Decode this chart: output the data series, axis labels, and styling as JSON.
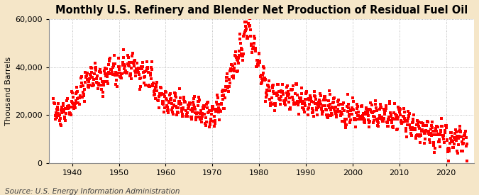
{
  "title": "Monthly U.S. Refinery and Blender Net Production of Residual Fuel Oil",
  "ylabel": "Thousand Barrels",
  "source": "Source: U.S. Energy Information Administration",
  "outer_bg": "#f5e6c8",
  "plot_bg": "#ffffff",
  "line_color": "#ff0000",
  "marker": "s",
  "marker_size": 2.2,
  "ylim": [
    0,
    60000
  ],
  "yticks": [
    0,
    20000,
    40000,
    60000
  ],
  "ytick_labels": [
    "0",
    "20,000",
    "40,000",
    "60,000"
  ],
  "xticks": [
    1940,
    1950,
    1960,
    1970,
    1980,
    1990,
    2000,
    2010,
    2020
  ],
  "title_fontsize": 10.5,
  "axis_fontsize": 8,
  "source_fontsize": 7.5,
  "grid_color": "#aaaaaa",
  "xlim_left": 1935,
  "xlim_right": 2026,
  "control_points": [
    [
      1936.0,
      22500
    ],
    [
      1937.0,
      21000
    ],
    [
      1938.0,
      21500
    ],
    [
      1939.0,
      23000
    ],
    [
      1940.0,
      25000
    ],
    [
      1941.5,
      28000
    ],
    [
      1943.0,
      34000
    ],
    [
      1944.5,
      37000
    ],
    [
      1945.5,
      35000
    ],
    [
      1946.5,
      33000
    ],
    [
      1947.5,
      38000
    ],
    [
      1948.5,
      40500
    ],
    [
      1949.5,
      36000
    ],
    [
      1950.5,
      38500
    ],
    [
      1951.5,
      40500
    ],
    [
      1952.5,
      40000
    ],
    [
      1953.0,
      41000
    ],
    [
      1954.0,
      37000
    ],
    [
      1955.0,
      38000
    ],
    [
      1956.0,
      37500
    ],
    [
      1957.0,
      35000
    ],
    [
      1958.0,
      30000
    ],
    [
      1959.0,
      27500
    ],
    [
      1960.0,
      25500
    ],
    [
      1961.0,
      24500
    ],
    [
      1962.0,
      24000
    ],
    [
      1963.0,
      24000
    ],
    [
      1964.0,
      23500
    ],
    [
      1965.0,
      23000
    ],
    [
      1966.0,
      22500
    ],
    [
      1967.0,
      21500
    ],
    [
      1968.0,
      21000
    ],
    [
      1969.0,
      20500
    ],
    [
      1970.0,
      20000
    ],
    [
      1971.0,
      21000
    ],
    [
      1972.0,
      25000
    ],
    [
      1973.0,
      33000
    ],
    [
      1974.5,
      40000
    ],
    [
      1975.5,
      44000
    ],
    [
      1976.5,
      49000
    ],
    [
      1977.3,
      56000
    ],
    [
      1977.8,
      58000
    ],
    [
      1978.3,
      52000
    ],
    [
      1979.0,
      48000
    ],
    [
      1980.0,
      42000
    ],
    [
      1981.0,
      35000
    ],
    [
      1982.0,
      29000
    ],
    [
      1983.0,
      27000
    ],
    [
      1984.0,
      29000
    ],
    [
      1985.0,
      28000
    ],
    [
      1986.0,
      27500
    ],
    [
      1987.0,
      27000
    ],
    [
      1988.0,
      27000
    ],
    [
      1989.0,
      26500
    ],
    [
      1990.0,
      26000
    ],
    [
      1991.0,
      25000
    ],
    [
      1992.0,
      25000
    ],
    [
      1993.0,
      24500
    ],
    [
      1994.0,
      24000
    ],
    [
      1995.0,
      23500
    ],
    [
      1996.0,
      23500
    ],
    [
      1997.0,
      22500
    ],
    [
      1998.0,
      21000
    ],
    [
      1999.0,
      20500
    ],
    [
      2000.0,
      20500
    ],
    [
      2001.0,
      20000
    ],
    [
      2002.0,
      20000
    ],
    [
      2003.0,
      20000
    ],
    [
      2004.0,
      20500
    ],
    [
      2005.0,
      20500
    ],
    [
      2006.0,
      20000
    ],
    [
      2007.0,
      20000
    ],
    [
      2008.0,
      19000
    ],
    [
      2009.0,
      18000
    ],
    [
      2010.0,
      18500
    ],
    [
      2011.0,
      17500
    ],
    [
      2012.0,
      16000
    ],
    [
      2013.0,
      15000
    ],
    [
      2014.0,
      14000
    ],
    [
      2015.0,
      13500
    ],
    [
      2016.0,
      13000
    ],
    [
      2017.0,
      12500
    ],
    [
      2018.0,
      12000
    ],
    [
      2019.0,
      12500
    ],
    [
      2020.0,
      11000
    ],
    [
      2020.4,
      5000
    ],
    [
      2021.0,
      8500
    ],
    [
      2022.0,
      10000
    ],
    [
      2023.0,
      10500
    ],
    [
      2023.5,
      9000
    ],
    [
      2024.0,
      9500
    ]
  ]
}
